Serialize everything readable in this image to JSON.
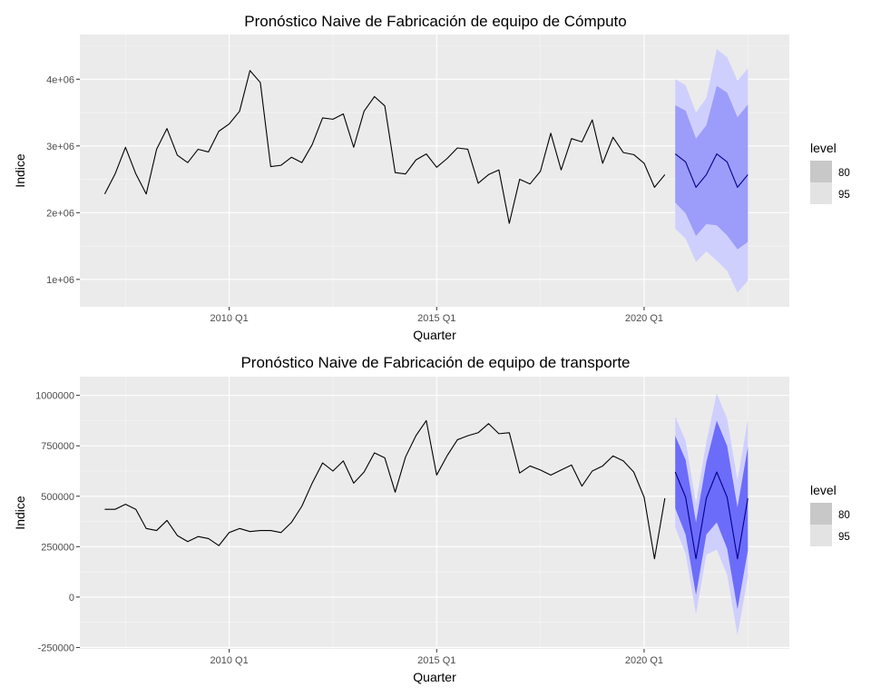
{
  "chart_data": [
    {
      "type": "line",
      "title": "Pronóstico Naive de Fabricación de equipo de Cómputo",
      "xlabel": "Quarter",
      "ylabel": "Indice",
      "x_ticks": [
        {
          "label": "2010 Q1",
          "x": 2010.0
        },
        {
          "label": "2015 Q1",
          "x": 2015.0
        },
        {
          "label": "2020 Q1",
          "x": 2020.0
        }
      ],
      "y_ticks": [
        {
          "label": "1e+06",
          "value": 1000000
        },
        {
          "label": "2e+06",
          "value": 2000000
        },
        {
          "label": "3e+06",
          "value": 3000000
        },
        {
          "label": "4e+06",
          "value": 4000000
        }
      ],
      "xlim": [
        2006.4,
        2023.5
      ],
      "ylim": [
        590000,
        4670000
      ],
      "grid": true,
      "legend": {
        "title": "level",
        "entries": [
          "80",
          "95"
        ],
        "position": "right"
      },
      "colors": {
        "series": "#000000",
        "forecast": "#00008b",
        "band80": "#9c9cfa",
        "band95": "#cfcffe",
        "panel": "#ebebeb",
        "grid": "#ffffff",
        "key80": "#c8c8c8",
        "key95": "#e3e3e3"
      },
      "series": [
        {
          "start": 2007.0,
          "step": 0.25,
          "values": [
            2280000,
            2580000,
            2980000,
            2580000,
            2280000,
            2950000,
            3260000,
            2860000,
            2750000,
            2950000,
            2910000,
            3220000,
            3330000,
            3520000,
            4130000,
            3950000,
            2690000,
            2710000,
            2830000,
            2750000,
            3020000,
            3420000,
            3400000,
            3480000,
            2980000,
            3520000,
            3740000,
            3600000,
            2600000,
            2580000,
            2790000,
            2880000,
            2680000,
            2810000,
            2970000,
            2950000,
            2440000,
            2570000,
            2640000,
            1840000,
            2500000,
            2430000,
            2620000,
            3190000,
            2640000,
            3110000,
            3060000,
            3390000,
            2740000,
            3130000,
            2900000,
            2870000,
            2740000,
            2380000,
            2570000
          ]
        }
      ],
      "forecast": {
        "start": 2020.75,
        "step": 0.25,
        "mean": [
          2880000,
          2760000,
          2380000,
          2570000,
          2880000,
          2760000,
          2380000,
          2570000
        ],
        "lo80": [
          2150000,
          1990000,
          1650000,
          1830000,
          1810000,
          1660000,
          1450000,
          1560000
        ],
        "hi80": [
          3610000,
          3530000,
          3110000,
          3310000,
          3900000,
          3800000,
          3430000,
          3620000
        ],
        "lo95": [
          1760000,
          1610000,
          1260000,
          1420000,
          1280000,
          1130000,
          800000,
          980000
        ],
        "hi95": [
          4000000,
          3910000,
          3500000,
          3720000,
          4450000,
          4330000,
          3980000,
          4160000
        ]
      }
    },
    {
      "type": "line",
      "title": "Pronóstico Naive de Fabricación de equipo de transporte",
      "xlabel": "Quarter",
      "ylabel": "Indice",
      "x_ticks": [
        {
          "label": "2010 Q1",
          "x": 2010.0
        },
        {
          "label": "2015 Q1",
          "x": 2015.0
        },
        {
          "label": "2020 Q1",
          "x": 2020.0
        }
      ],
      "y_ticks": [
        {
          "label": "-250000",
          "value": -250000
        },
        {
          "label": "0",
          "value": 0
        },
        {
          "label": "250000",
          "value": 250000
        },
        {
          "label": "500000",
          "value": 500000
        },
        {
          "label": "750000",
          "value": 750000
        },
        {
          "label": "1000000",
          "value": 1000000
        }
      ],
      "xlim": [
        2006.4,
        2023.5
      ],
      "ylim": [
        -257000,
        1093000
      ],
      "grid": true,
      "legend": {
        "title": "level",
        "entries": [
          "80",
          "95"
        ],
        "position": "right"
      },
      "colors": {
        "series": "#000000",
        "forecast": "#00008b",
        "band80": "#6c6cfa",
        "band95": "#cfcffe",
        "panel": "#ebebeb",
        "grid": "#ffffff",
        "key80": "#c8c8c8",
        "key95": "#e3e3e3"
      },
      "series": [
        {
          "start": 2007.0,
          "step": 0.25,
          "values": [
            435000,
            435000,
            460000,
            435000,
            340000,
            330000,
            380000,
            305000,
            275000,
            300000,
            290000,
            255000,
            320000,
            340000,
            325000,
            330000,
            330000,
            320000,
            370000,
            450000,
            565000,
            665000,
            625000,
            675000,
            565000,
            620000,
            715000,
            690000,
            520000,
            695000,
            800000,
            875000,
            605000,
            700000,
            780000,
            800000,
            815000,
            860000,
            810000,
            815000,
            615000,
            650000,
            630000,
            605000,
            630000,
            655000,
            550000,
            625000,
            650000,
            700000,
            675000,
            620000,
            495000,
            190000,
            490000
          ]
        }
      ],
      "forecast": {
        "start": 2020.75,
        "step": 0.25,
        "mean": [
          620000,
          495000,
          190000,
          490000,
          620000,
          495000,
          190000,
          490000
        ],
        "lo80": [
          440000,
          310000,
          10000,
          310000,
          370000,
          240000,
          -60000,
          230000
        ],
        "hi80": [
          800000,
          680000,
          370000,
          670000,
          875000,
          750000,
          445000,
          745000
        ],
        "lo95": [
          345000,
          215000,
          -85000,
          210000,
          235000,
          110000,
          -190000,
          100000
        ],
        "hi95": [
          895000,
          775000,
          465000,
          770000,
          1010000,
          885000,
          580000,
          880000
        ]
      }
    }
  ]
}
